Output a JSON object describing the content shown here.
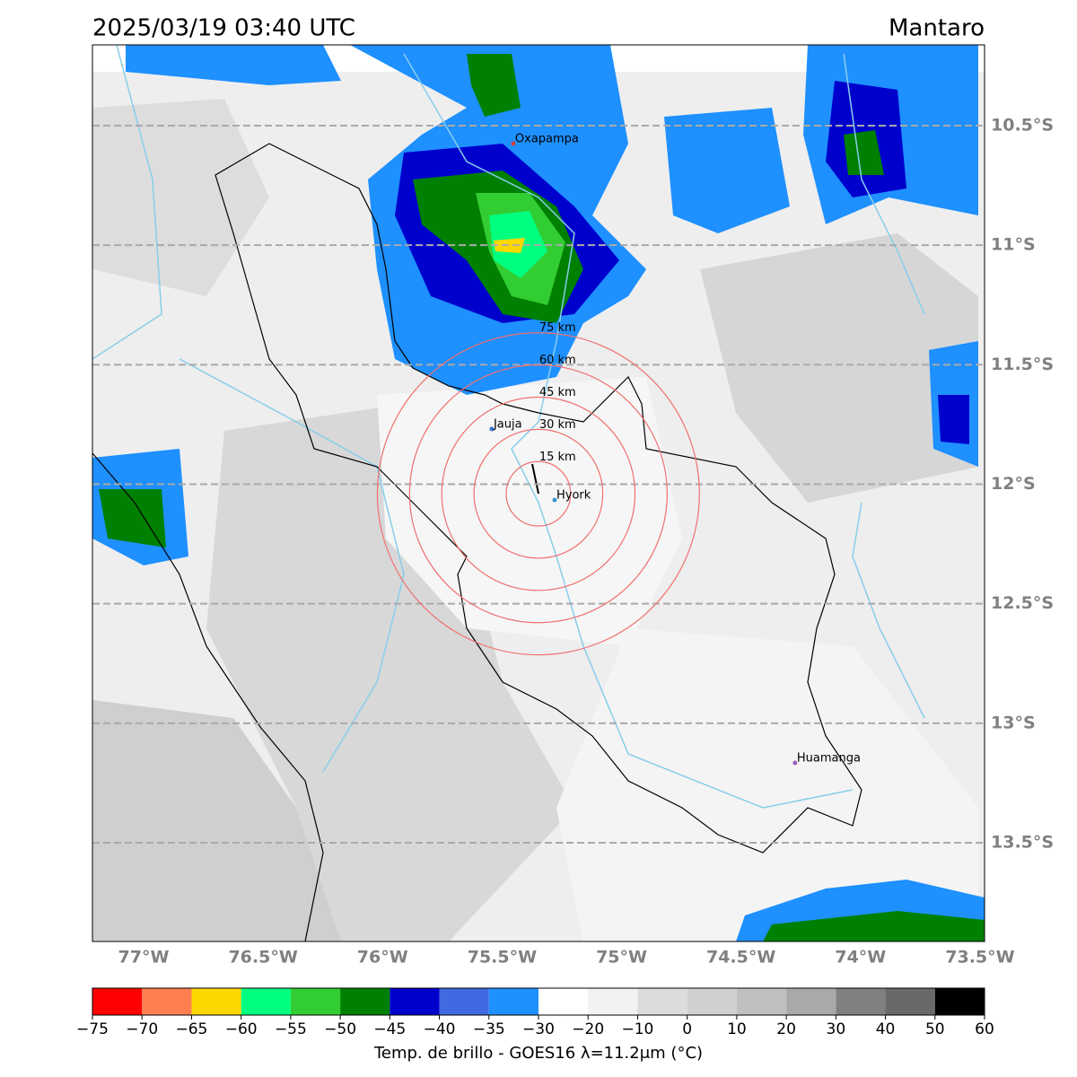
{
  "title": "2025/03/19 03:40 UTC",
  "region": "Mantaro",
  "map": {
    "lonlim": [
      -77.214,
      -73.481
    ],
    "latlim": [
      -13.913,
      -10.162
    ],
    "lonticks": [
      {
        "value": -77,
        "label": "77°W"
      },
      {
        "value": -76.5,
        "label": "76.5°W"
      },
      {
        "value": -76,
        "label": "76°W"
      },
      {
        "value": -75.5,
        "label": "75.5°W"
      },
      {
        "value": -75,
        "label": "75°W"
      },
      {
        "value": -74.5,
        "label": "74.5°W"
      },
      {
        "value": -74,
        "label": "74°W"
      },
      {
        "value": -73.5,
        "label": "73.5°W"
      }
    ],
    "latticks": [
      {
        "value": -10.5,
        "label": "10.5°S"
      },
      {
        "value": -11,
        "label": "11°S"
      },
      {
        "value": -11.5,
        "label": "11.5°S"
      },
      {
        "value": -12,
        "label": "12°S"
      },
      {
        "value": -12.5,
        "label": "12.5°S"
      },
      {
        "value": -13,
        "label": "13°S"
      },
      {
        "value": -13.5,
        "label": "13.5°S"
      }
    ],
    "rings": {
      "center": [
        -75.348,
        -12.04
      ],
      "color": "#f07070",
      "radii": [
        {
          "value": 15,
          "label": "15 km"
        },
        {
          "value": 30,
          "label": "30 km"
        },
        {
          "value": 45,
          "label": "45 km"
        },
        {
          "value": 60,
          "label": "60 km"
        },
        {
          "value": 75,
          "label": "75 km"
        }
      ]
    },
    "cities": [
      {
        "name": "Oxapampa",
        "lon": -75.453,
        "lat": -10.575,
        "color": "#d04040"
      },
      {
        "name": "Jauja",
        "lon": -75.543,
        "lat": -11.769,
        "color": "#3a6fd0"
      },
      {
        "name": "Hyork",
        "lon": -75.28,
        "lat": -12.066,
        "color": "#3a90d0"
      },
      {
        "name": "Huamanga",
        "lon": -74.274,
        "lat": -13.166,
        "color": "#a060c0"
      }
    ]
  },
  "colorbar": {
    "label": "Temp. de brillo - GOES16 λ=11.2μm (°C)",
    "ticks": [
      {
        "value": -75,
        "label": "−75"
      },
      {
        "value": -70,
        "label": "−70"
      },
      {
        "value": -65,
        "label": "−65"
      },
      {
        "value": -60,
        "label": "−60"
      },
      {
        "value": -55,
        "label": "−55"
      },
      {
        "value": -50,
        "label": "−50"
      },
      {
        "value": -45,
        "label": "−45"
      },
      {
        "value": -40,
        "label": "−40"
      },
      {
        "value": -35,
        "label": "−35"
      },
      {
        "value": -30,
        "label": "−30"
      },
      {
        "value": -20,
        "label": "−20"
      },
      {
        "value": -10,
        "label": "−10"
      },
      0,
      10,
      20,
      30,
      40,
      50,
      60
    ],
    "colors": [
      "#ff0000",
      "#ff7f50",
      "#ffd700",
      "#00ff7f",
      "#32cd32",
      "#008000",
      "#0000cd",
      "#4169e1",
      "#1e90ff",
      "#ffffff",
      "#f2f2f2",
      "#dcdcdc",
      "#d0d0d0",
      "#c0c0c0",
      "#a9a9a9",
      "#808080",
      "#696969",
      "#000000"
    ]
  }
}
